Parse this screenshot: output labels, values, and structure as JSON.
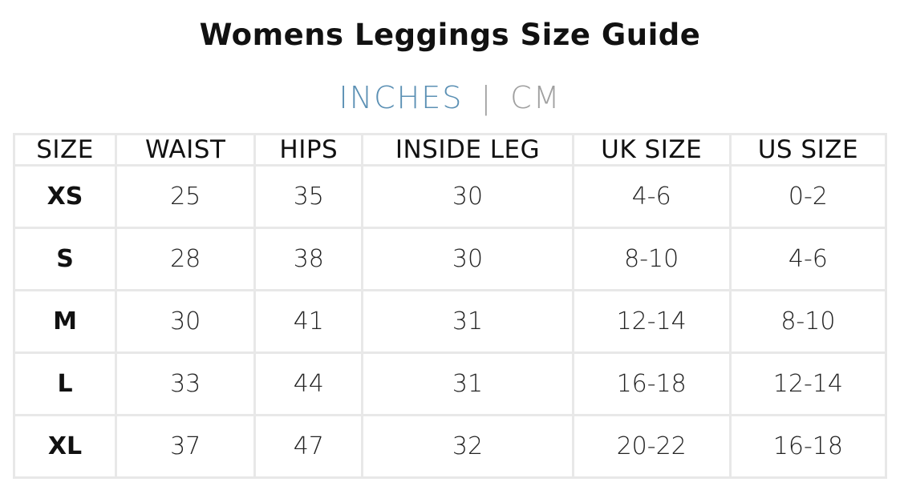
{
  "header": {
    "title": "Womens Leggings Size Guide",
    "units": [
      "INCHES",
      "CM"
    ],
    "separator": "|"
  },
  "table": {
    "columns": [
      "SIZE",
      "WAIST",
      "HIPS",
      "INSIDE LEG",
      "UK SIZE",
      "US SIZE"
    ],
    "rows": [
      [
        "XS",
        25,
        35,
        30,
        "4-6",
        "0-2"
      ],
      [
        "S",
        28,
        38,
        30,
        "8-10",
        "4-6"
      ],
      [
        "M",
        30,
        41,
        31,
        "12-14",
        "8-10"
      ],
      [
        "L",
        33,
        44,
        31,
        "16-18",
        "12-14"
      ],
      [
        "XL",
        37,
        47,
        32,
        "20-22",
        "16-18"
      ]
    ]
  }
}
